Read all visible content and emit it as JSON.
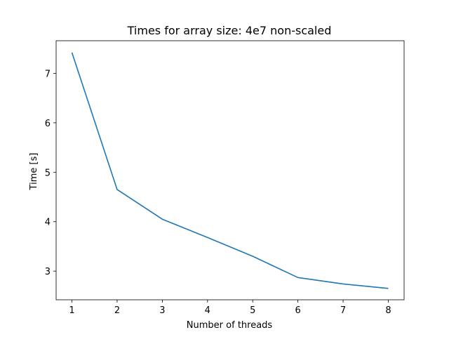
{
  "chart_data": {
    "type": "line",
    "title": "Times for array size: 4e7 non-scaled",
    "xlabel": "Number of threads",
    "ylabel": "Time [s]",
    "xlim": [
      0.65,
      8.35
    ],
    "ylim": [
      2.42,
      7.66
    ],
    "xticks": [
      1,
      2,
      3,
      4,
      5,
      6,
      7,
      8
    ],
    "yticks": [
      3,
      4,
      5,
      6,
      7
    ],
    "grid": false,
    "series": [
      {
        "x": [
          1,
          2,
          3,
          4,
          5,
          6,
          7,
          8
        ],
        "y": [
          7.42,
          4.65,
          4.05,
          3.68,
          3.3,
          2.87,
          2.74,
          2.65
        ],
        "color": "#1f77b4"
      }
    ]
  }
}
